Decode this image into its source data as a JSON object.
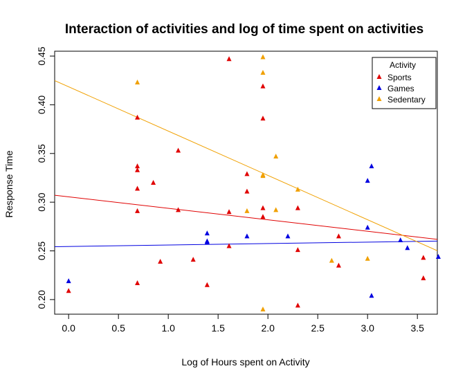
{
  "chart_data": {
    "type": "scatter",
    "title": "Interaction of activities and log of time spent on activities",
    "xlabel": "Log of Hours spent on Activity",
    "ylabel": "Response Time",
    "xlim": [
      -0.14,
      3.7
    ],
    "ylim": [
      0.185,
      0.455
    ],
    "xticks": [
      0.0,
      0.5,
      1.0,
      1.5,
      2.0,
      2.5,
      3.0,
      3.5
    ],
    "xtick_labels": [
      "0.0",
      "0.5",
      "1.0",
      "1.5",
      "2.0",
      "2.5",
      "3.0",
      "3.5"
    ],
    "yticks": [
      0.2,
      0.25,
      0.3,
      0.35,
      0.4,
      0.45
    ],
    "ytick_labels": [
      "0.20",
      "0.25",
      "0.30",
      "0.35",
      "0.40",
      "0.45"
    ],
    "grid": false,
    "legend": {
      "title": "Activity",
      "position": "top-right",
      "entries": [
        "Sports",
        "Games",
        "Sedentary"
      ]
    },
    "series": [
      {
        "name": "Sports",
        "color": "#e00000",
        "marker": "triangle",
        "points": [
          [
            0.0,
            0.209
          ],
          [
            0.69,
            0.387
          ],
          [
            0.69,
            0.337
          ],
          [
            0.69,
            0.333
          ],
          [
            0.69,
            0.314
          ],
          [
            0.69,
            0.291
          ],
          [
            0.69,
            0.217
          ],
          [
            0.85,
            0.32
          ],
          [
            0.92,
            0.239
          ],
          [
            1.1,
            0.353
          ],
          [
            1.1,
            0.292
          ],
          [
            1.25,
            0.241
          ],
          [
            1.39,
            0.215
          ],
          [
            1.61,
            0.447
          ],
          [
            1.61,
            0.29
          ],
          [
            1.61,
            0.255
          ],
          [
            1.79,
            0.329
          ],
          [
            1.79,
            0.311
          ],
          [
            1.95,
            0.419
          ],
          [
            1.95,
            0.386
          ],
          [
            1.95,
            0.294
          ],
          [
            1.95,
            0.285
          ],
          [
            2.3,
            0.294
          ],
          [
            2.3,
            0.251
          ],
          [
            2.3,
            0.194
          ],
          [
            2.71,
            0.265
          ],
          [
            2.71,
            0.235
          ],
          [
            3.56,
            0.243
          ],
          [
            3.56,
            0.222
          ]
        ],
        "fit": {
          "intercept": 0.3055,
          "slope": -0.0118
        }
      },
      {
        "name": "Games",
        "color": "#0000e0",
        "marker": "triangle",
        "points": [
          [
            0.0,
            0.219
          ],
          [
            1.39,
            0.268
          ],
          [
            1.39,
            0.26
          ],
          [
            1.39,
            0.259
          ],
          [
            1.79,
            0.265
          ],
          [
            2.2,
            0.265
          ],
          [
            3.0,
            0.322
          ],
          [
            3.0,
            0.274
          ],
          [
            3.04,
            0.337
          ],
          [
            3.04,
            0.204
          ],
          [
            3.33,
            0.261
          ],
          [
            3.4,
            0.253
          ],
          [
            3.71,
            0.244
          ]
        ],
        "fit": {
          "intercept": 0.2545,
          "slope": 0.0015
        }
      },
      {
        "name": "Sedentary",
        "color": "#f0a000",
        "marker": "triangle",
        "points": [
          [
            0.69,
            0.423
          ],
          [
            1.79,
            0.291
          ],
          [
            1.95,
            0.449
          ],
          [
            1.95,
            0.433
          ],
          [
            1.95,
            0.328
          ],
          [
            1.95,
            0.327
          ],
          [
            1.95,
            0.19
          ],
          [
            2.08,
            0.347
          ],
          [
            2.08,
            0.292
          ],
          [
            2.3,
            0.313
          ],
          [
            2.64,
            0.24
          ],
          [
            3.0,
            0.242
          ]
        ],
        "fit": {
          "intercept": 0.4185,
          "slope": -0.0455
        }
      }
    ]
  }
}
